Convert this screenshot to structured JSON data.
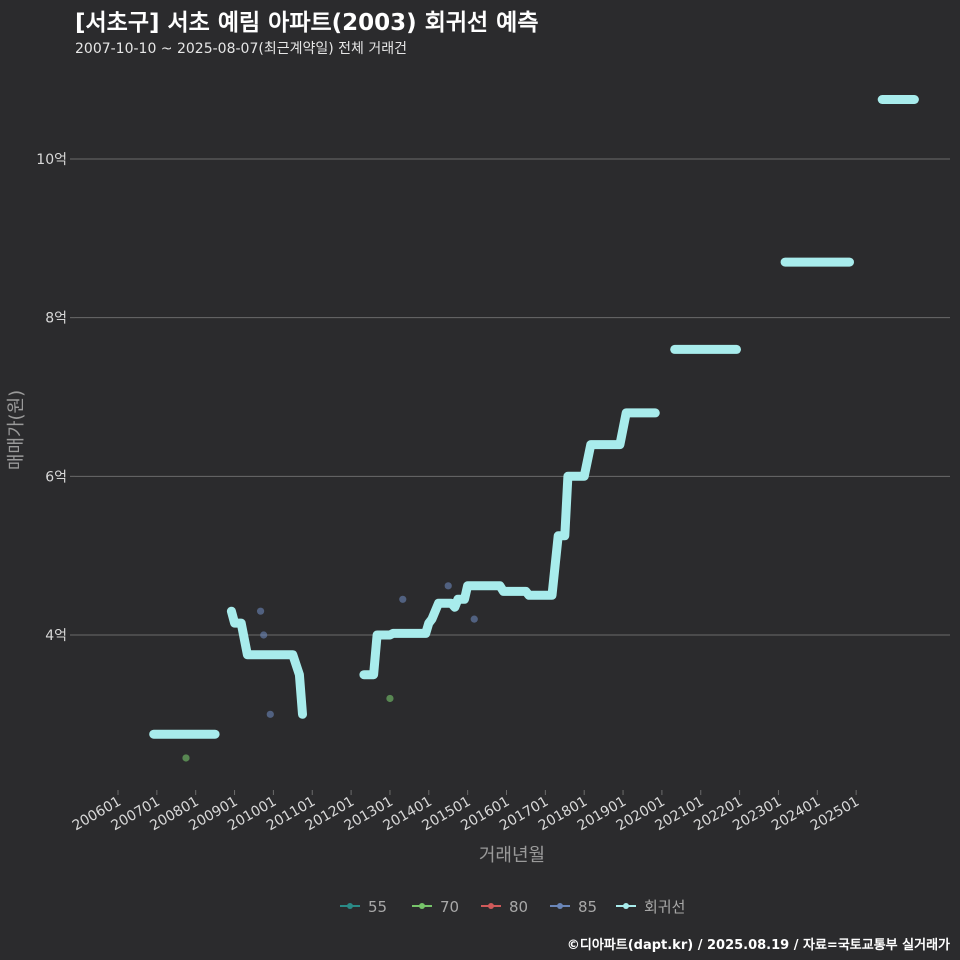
{
  "header": {
    "title": "[서초구] 서초 예림 아파트(2003) 회귀선 예측",
    "subtitle": "2007-10-10 ~ 2025-08-07(최근계약일) 전체 거래건"
  },
  "caption": "©디아파트(dapt.kr) / 2025.08.19 / 자료=국토교통부 실거래가",
  "colors": {
    "background": "#2b2b2d",
    "grid": "#6b6b6b",
    "s55": "#2a8a86",
    "s70": "#77c46a",
    "s80": "#d05a5a",
    "s85": "#6a86b8",
    "regression": "#a8ecec"
  },
  "chart_data": {
    "type": "scatter",
    "title": "[서초구] 서초 예림 아파트(2003) 회귀선 예측",
    "xlabel": "거래년월",
    "ylabel": "매매가(원)",
    "ylim": [
      1.8,
      10.9
    ],
    "y_ticks": [
      {
        "value": 4,
        "label": "4억"
      },
      {
        "value": 6,
        "label": "6억"
      },
      {
        "value": 8,
        "label": "8억"
      },
      {
        "value": 10,
        "label": "10억"
      }
    ],
    "x_ticks": [
      "200601",
      "200701",
      "200801",
      "200901",
      "201001",
      "201101",
      "201201",
      "201301",
      "201401",
      "201501",
      "201601",
      "201701",
      "201801",
      "201901",
      "202001",
      "202101",
      "202201",
      "202301",
      "202401",
      "202501"
    ],
    "legend": [
      "55",
      "70",
      "80",
      "85",
      "회귀선"
    ],
    "series": [
      {
        "name": "55",
        "points": []
      },
      {
        "name": "70",
        "points": [
          [
            2007.75,
            2.45
          ],
          [
            2013.0,
            3.2
          ]
        ]
      },
      {
        "name": "80",
        "points": []
      },
      {
        "name": "85",
        "points": [
          [
            2009.67,
            4.3
          ],
          [
            2009.75,
            4.0
          ],
          [
            2009.92,
            3.0
          ],
          [
            2013.33,
            4.45
          ],
          [
            2014.5,
            4.62
          ],
          [
            2015.17,
            4.2
          ]
        ]
      },
      {
        "name": "회귀선",
        "segments": [
          [
            [
              2006.92,
              2.75
            ],
            [
              2008.5,
              2.75
            ]
          ],
          [
            [
              2008.92,
              4.3
            ],
            [
              2009.0,
              4.15
            ],
            [
              2009.17,
              4.15
            ],
            [
              2009.33,
              3.75
            ],
            [
              2010.5,
              3.75
            ],
            [
              2010.67,
              3.5
            ],
            [
              2010.75,
              3.0
            ]
          ],
          [
            [
              2012.33,
              3.5
            ],
            [
              2012.58,
              3.5
            ],
            [
              2012.67,
              4.0
            ],
            [
              2013.0,
              4.0
            ],
            [
              2013.08,
              4.02
            ],
            [
              2013.92,
              4.02
            ],
            [
              2014.0,
              4.15
            ],
            [
              2014.08,
              4.2
            ],
            [
              2014.25,
              4.4
            ],
            [
              2014.58,
              4.4
            ],
            [
              2014.67,
              4.35
            ],
            [
              2014.75,
              4.45
            ],
            [
              2014.92,
              4.45
            ],
            [
              2015.0,
              4.62
            ],
            [
              2015.83,
              4.62
            ],
            [
              2015.92,
              4.55
            ],
            [
              2016.5,
              4.55
            ],
            [
              2016.58,
              4.5
            ],
            [
              2017.17,
              4.5
            ],
            [
              2017.33,
              5.25
            ],
            [
              2017.5,
              5.25
            ],
            [
              2017.58,
              6.0
            ],
            [
              2018.0,
              6.0
            ],
            [
              2018.17,
              6.4
            ],
            [
              2018.92,
              6.4
            ],
            [
              2019.08,
              6.8
            ],
            [
              2019.83,
              6.8
            ]
          ],
          [
            [
              2020.33,
              7.6
            ],
            [
              2021.92,
              7.6
            ]
          ],
          [
            [
              2023.17,
              8.7
            ],
            [
              2024.83,
              8.7
            ]
          ],
          [
            [
              2025.67,
              10.75
            ],
            [
              2026.5,
              10.75
            ]
          ]
        ]
      }
    ]
  }
}
